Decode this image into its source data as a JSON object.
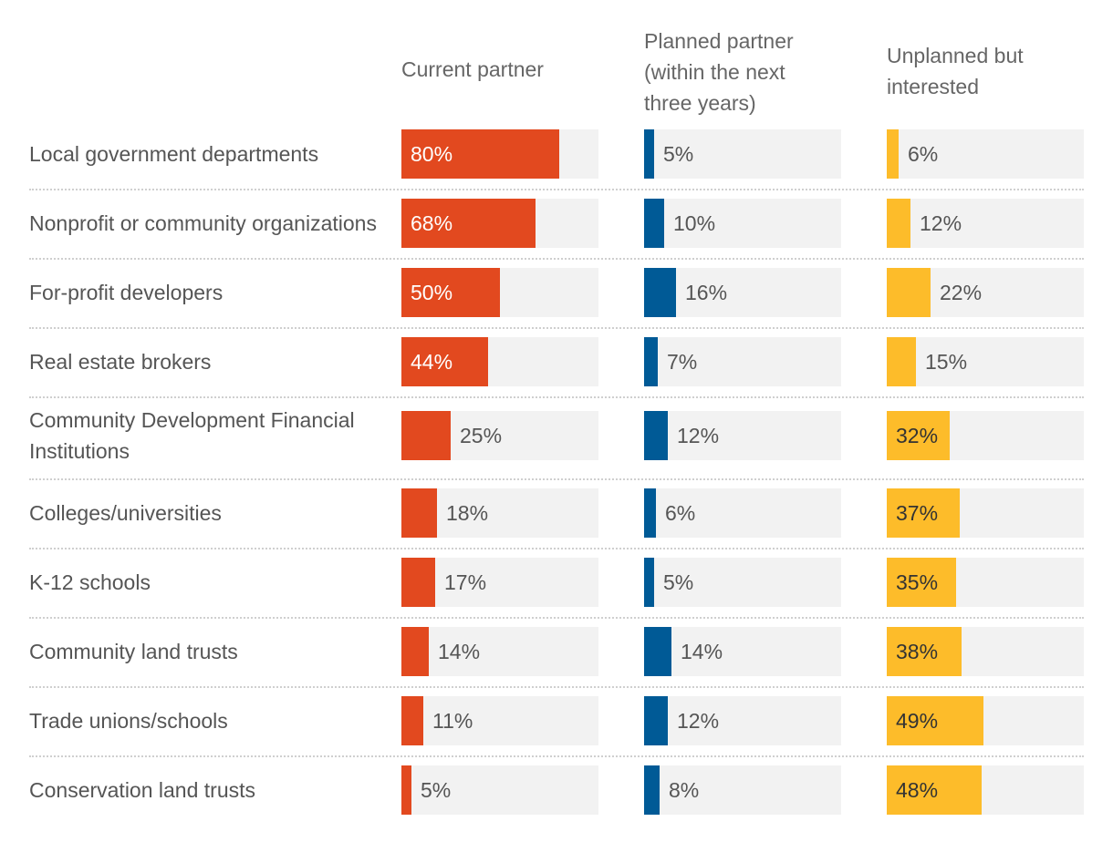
{
  "colors": {
    "current": "#e2491f",
    "planned": "#005a96",
    "unplanned": "#fdbc2a",
    "track": "#f2f2f2",
    "label_on_bar": "#ffffff",
    "label_off_bar": "#555555"
  },
  "chart_data": {
    "type": "bar",
    "orientation": "horizontal",
    "title": "",
    "xlabel": "",
    "ylabel": "",
    "xlim": [
      0,
      100
    ],
    "unit": "%",
    "categories": [
      "Local government departments",
      "Nonprofit or community organizations",
      "For-profit developers",
      "Real estate brokers",
      "Community Development Financial Institutions",
      "Colleges/universities",
      "K-12 schools",
      "Community land trusts",
      "Trade unions/schools",
      "Conservation land trusts"
    ],
    "series": [
      {
        "name": "Current partner",
        "values": [
          80,
          68,
          50,
          44,
          25,
          18,
          17,
          14,
          11,
          5
        ]
      },
      {
        "name": "Planned partner\n(within the next\nthree years)",
        "values": [
          5,
          10,
          16,
          7,
          12,
          6,
          5,
          14,
          12,
          8
        ]
      },
      {
        "name": "Unplanned but\ninterested",
        "values": [
          6,
          12,
          22,
          15,
          32,
          37,
          35,
          38,
          49,
          48
        ]
      }
    ]
  }
}
